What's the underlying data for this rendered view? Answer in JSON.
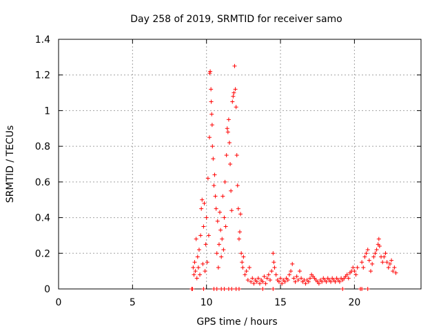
{
  "chart_data": {
    "type": "scatter",
    "title": "Day 258 of 2019, SRMTID for receiver samo",
    "xlabel": "GPS time / hours",
    "ylabel": "SRMTID / TECUs",
    "xlim": [
      0,
      24.5
    ],
    "ylim": [
      0,
      1.4
    ],
    "xticks": [
      0,
      5,
      10,
      15,
      20
    ],
    "xtick_labels": [
      "0",
      "5",
      "10",
      "15",
      "20"
    ],
    "yticks": [
      0,
      0.2,
      0.4,
      0.6,
      0.8,
      1.0,
      1.2,
      1.4
    ],
    "ytick_labels": [
      "0",
      "0.2",
      "0.4",
      "0.6",
      "0.8",
      "1",
      "1.2",
      "1.4"
    ],
    "grid": true,
    "marker": "plus",
    "color": "#ff0000",
    "series": [
      {
        "name": "SRMTID",
        "points": [
          [
            9.0,
            0.0
          ],
          [
            9.05,
            0.0
          ],
          [
            9.1,
            0.12
          ],
          [
            9.15,
            0.08
          ],
          [
            9.2,
            0.15
          ],
          [
            9.25,
            0.1
          ],
          [
            9.3,
            0.28
          ],
          [
            9.35,
            0.06
          ],
          [
            9.4,
            0.18
          ],
          [
            9.45,
            0.12
          ],
          [
            9.5,
            0.22
          ],
          [
            9.55,
            0.08
          ],
          [
            9.6,
            0.3
          ],
          [
            9.65,
            0.45
          ],
          [
            9.7,
            0.5
          ],
          [
            9.75,
            0.14
          ],
          [
            9.8,
            0.35
          ],
          [
            9.85,
            0.48
          ],
          [
            9.9,
            0.1
          ],
          [
            9.95,
            0.25
          ],
          [
            10.0,
            0.4
          ],
          [
            10.05,
            0.15
          ],
          [
            10.1,
            0.62
          ],
          [
            10.15,
            0.3
          ],
          [
            10.2,
            0.85
          ],
          [
            10.22,
            1.21
          ],
          [
            10.25,
            1.22
          ],
          [
            10.3,
            1.12
          ],
          [
            10.32,
            1.05
          ],
          [
            10.35,
            0.98
          ],
          [
            10.38,
            0.92
          ],
          [
            10.4,
            0.8
          ],
          [
            10.45,
            0.73
          ],
          [
            10.5,
            0.58
          ],
          [
            10.55,
            0.64
          ],
          [
            10.6,
            0.52
          ],
          [
            10.65,
            0.45
          ],
          [
            10.7,
            0.2
          ],
          [
            10.75,
            0.38
          ],
          [
            10.8,
            0.12
          ],
          [
            10.85,
            0.25
          ],
          [
            10.9,
            0.43
          ],
          [
            10.95,
            0.33
          ],
          [
            11.0,
            0.18
          ],
          [
            11.05,
            0.28
          ],
          [
            11.1,
            0.52
          ],
          [
            11.15,
            0.22
          ],
          [
            11.2,
            0.4
          ],
          [
            11.25,
            0.6
          ],
          [
            11.3,
            0.35
          ],
          [
            11.35,
            0.75
          ],
          [
            11.4,
            0.9
          ],
          [
            11.45,
            0.88
          ],
          [
            11.5,
            0.95
          ],
          [
            11.55,
            0.82
          ],
          [
            11.6,
            0.7
          ],
          [
            11.65,
            0.55
          ],
          [
            11.7,
            0.44
          ],
          [
            11.75,
            1.05
          ],
          [
            11.8,
            1.08
          ],
          [
            11.85,
            1.1
          ],
          [
            11.9,
            1.25
          ],
          [
            11.95,
            1.12
          ],
          [
            12.0,
            1.02
          ],
          [
            12.05,
            0.75
          ],
          [
            12.1,
            0.58
          ],
          [
            12.15,
            0.45
          ],
          [
            12.2,
            0.28
          ],
          [
            12.25,
            0.32
          ],
          [
            12.3,
            0.42
          ],
          [
            12.35,
            0.2
          ],
          [
            12.4,
            0.15
          ],
          [
            12.45,
            0.12
          ],
          [
            12.5,
            0.18
          ],
          [
            12.6,
            0.08
          ],
          [
            12.7,
            0.1
          ],
          [
            12.8,
            0.05
          ],
          [
            12.9,
            0.12
          ],
          [
            13.0,
            0.04
          ],
          [
            13.1,
            0.06
          ],
          [
            13.2,
            0.03
          ],
          [
            13.3,
            0.05
          ],
          [
            13.4,
            0.04
          ],
          [
            13.5,
            0.06
          ],
          [
            13.6,
            0.03
          ],
          [
            13.7,
            0.05
          ],
          [
            13.8,
            0.04
          ],
          [
            13.9,
            0.07
          ],
          [
            14.0,
            0.03
          ],
          [
            14.1,
            0.06
          ],
          [
            14.2,
            0.08
          ],
          [
            14.3,
            0.05
          ],
          [
            14.4,
            0.1
          ],
          [
            14.5,
            0.2
          ],
          [
            14.55,
            0.15
          ],
          [
            14.6,
            0.12
          ],
          [
            14.7,
            0.08
          ],
          [
            14.8,
            0.05
          ],
          [
            14.9,
            0.04
          ],
          [
            15.0,
            0.06
          ],
          [
            15.1,
            0.03
          ],
          [
            15.2,
            0.05
          ],
          [
            15.3,
            0.04
          ],
          [
            15.4,
            0.06
          ],
          [
            15.5,
            0.05
          ],
          [
            15.6,
            0.08
          ],
          [
            15.7,
            0.1
          ],
          [
            15.8,
            0.14
          ],
          [
            15.9,
            0.06
          ],
          [
            16.0,
            0.04
          ],
          [
            16.1,
            0.07
          ],
          [
            16.2,
            0.05
          ],
          [
            16.3,
            0.1
          ],
          [
            16.4,
            0.06
          ],
          [
            16.5,
            0.04
          ],
          [
            16.6,
            0.05
          ],
          [
            16.7,
            0.03
          ],
          [
            16.8,
            0.05
          ],
          [
            16.9,
            0.04
          ],
          [
            17.0,
            0.06
          ],
          [
            17.1,
            0.08
          ],
          [
            17.2,
            0.07
          ],
          [
            17.3,
            0.06
          ],
          [
            17.4,
            0.05
          ],
          [
            17.5,
            0.04
          ],
          [
            17.6,
            0.03
          ],
          [
            17.7,
            0.05
          ],
          [
            17.8,
            0.04
          ],
          [
            17.9,
            0.06
          ],
          [
            18.0,
            0.05
          ],
          [
            18.1,
            0.04
          ],
          [
            18.2,
            0.06
          ],
          [
            18.3,
            0.05
          ],
          [
            18.4,
            0.04
          ],
          [
            18.5,
            0.06
          ],
          [
            18.6,
            0.05
          ],
          [
            18.7,
            0.04
          ],
          [
            18.8,
            0.06
          ],
          [
            18.9,
            0.05
          ],
          [
            19.0,
            0.04
          ],
          [
            19.1,
            0.06
          ],
          [
            19.2,
            0.05
          ],
          [
            19.3,
            0.06
          ],
          [
            19.4,
            0.07
          ],
          [
            19.5,
            0.08
          ],
          [
            19.6,
            0.06
          ],
          [
            19.7,
            0.09
          ],
          [
            19.8,
            0.1
          ],
          [
            19.9,
            0.12
          ],
          [
            20.0,
            0.1
          ],
          [
            20.1,
            0.08
          ],
          [
            20.2,
            0.12
          ],
          [
            20.5,
            0.15
          ],
          [
            20.6,
            0.12
          ],
          [
            20.7,
            0.18
          ],
          [
            20.8,
            0.2
          ],
          [
            20.9,
            0.22
          ],
          [
            21.0,
            0.16
          ],
          [
            21.1,
            0.1
          ],
          [
            21.2,
            0.14
          ],
          [
            21.3,
            0.18
          ],
          [
            21.4,
            0.2
          ],
          [
            21.5,
            0.22
          ],
          [
            21.6,
            0.25
          ],
          [
            21.65,
            0.28
          ],
          [
            21.7,
            0.24
          ],
          [
            21.8,
            0.18
          ],
          [
            21.9,
            0.15
          ],
          [
            22.0,
            0.18
          ],
          [
            22.1,
            0.2
          ],
          [
            22.2,
            0.15
          ],
          [
            22.3,
            0.12
          ],
          [
            22.4,
            0.14
          ],
          [
            22.5,
            0.16
          ],
          [
            22.6,
            0.1
          ],
          [
            22.7,
            0.12
          ],
          [
            22.8,
            0.09
          ],
          [
            20.4,
            0.0
          ],
          [
            20.5,
            0.0
          ],
          [
            20.9,
            0.0
          ],
          [
            11.0,
            0.0
          ],
          [
            11.2,
            0.0
          ],
          [
            11.5,
            0.0
          ],
          [
            11.7,
            0.0
          ],
          [
            9.8,
            0.0
          ],
          [
            10.5,
            0.0
          ],
          [
            10.7,
            0.0
          ],
          [
            12.0,
            0.0
          ],
          [
            12.2,
            0.0
          ],
          [
            19.2,
            0.0
          ],
          [
            14.5,
            0.0
          ],
          [
            13.8,
            0.0
          ]
        ]
      }
    ]
  }
}
